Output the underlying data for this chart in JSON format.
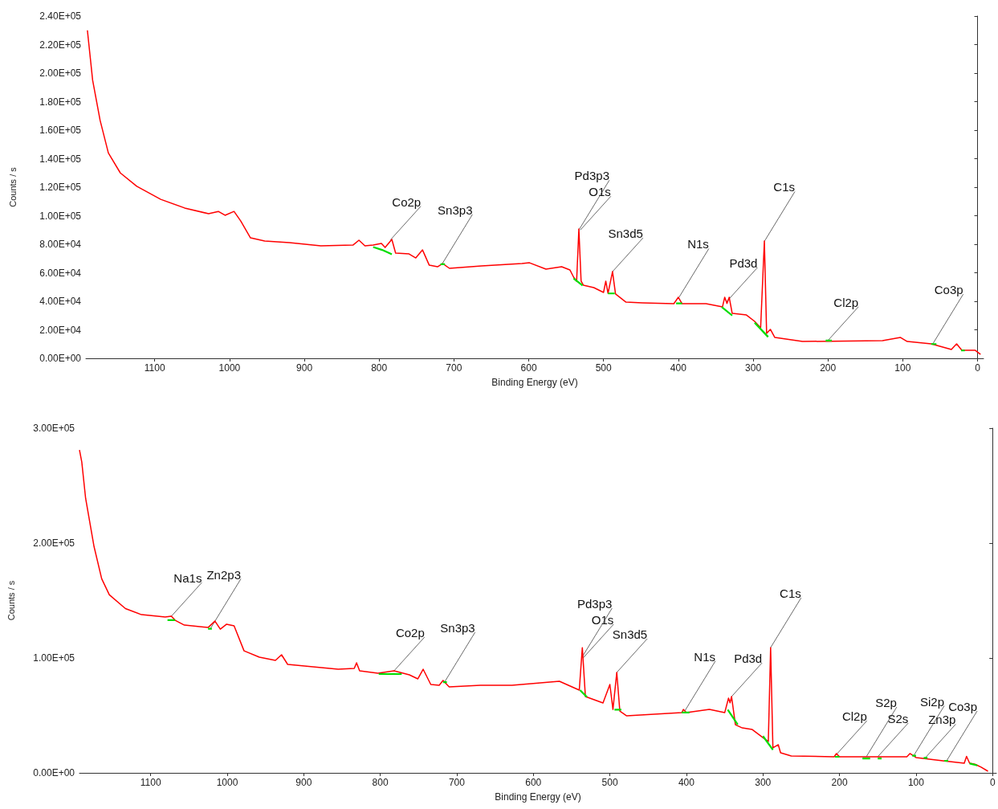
{
  "chart_data": [
    {
      "type": "line",
      "xlabel": "Binding Energy (eV)",
      "ylabel": "Counts / s",
      "marker": "none",
      "xlim": [
        1192,
        -8
      ],
      "xticks": [
        1100,
        1000,
        900,
        800,
        700,
        600,
        500,
        400,
        300,
        200,
        100,
        0
      ],
      "ylim": [
        0,
        240000
      ],
      "yticks": [
        {
          "value": 0,
          "label": "0.00E+00"
        },
        {
          "value": 20000,
          "label": "2.00E+04"
        },
        {
          "value": 40000,
          "label": "4.00E+04"
        },
        {
          "value": 60000,
          "label": "6.00E+04"
        },
        {
          "value": 80000,
          "label": "8.00E+04"
        },
        {
          "value": 100000,
          "label": "1.00E+05"
        },
        {
          "value": 120000,
          "label": "1.20E+05"
        },
        {
          "value": 140000,
          "label": "1.40E+05"
        },
        {
          "value": 160000,
          "label": "1.60E+05"
        },
        {
          "value": 180000,
          "label": "1.80E+05"
        },
        {
          "value": 200000,
          "label": "2.00E+05"
        },
        {
          "value": 220000,
          "label": "2.20E+05"
        },
        {
          "value": 240000,
          "label": "2.40E+05"
        }
      ],
      "series": [
        {
          "color": "#ff0000",
          "x": [
            1190,
            1183,
            1173,
            1162,
            1146,
            1124,
            1092,
            1060,
            1028,
            1015,
            1006,
            994,
            985,
            972,
            953,
            920,
            878,
            835,
            827,
            819,
            808,
            797,
            792,
            783,
            778,
            760,
            751,
            742,
            733,
            722,
            715,
            706,
            663,
            609,
            599,
            577,
            556,
            545,
            540,
            536,
            533,
            530,
            527,
            513,
            500,
            497,
            494,
            488,
            484,
            470,
            448,
            406,
            400,
            395,
            363,
            341,
            338,
            335,
            332,
            328,
            309,
            298,
            290,
            285,
            282,
            277,
            271,
            234,
            127,
            103,
            94,
            62,
            35,
            28,
            21,
            3,
            -4
          ],
          "values": [
            230000,
            195000,
            166800,
            144000,
            130000,
            120600,
            111500,
            105400,
            101400,
            103000,
            100300,
            103000,
            96300,
            84500,
            82300,
            81100,
            78900,
            79400,
            82800,
            78900,
            79400,
            80600,
            77700,
            83400,
            73800,
            73200,
            70400,
            76000,
            65300,
            64200,
            66400,
            63100,
            64800,
            66500,
            67000,
            62500,
            64200,
            62000,
            56900,
            54100,
            90700,
            54100,
            51300,
            49600,
            46200,
            54100,
            45600,
            60800,
            45100,
            39400,
            38900,
            38300,
            42800,
            38300,
            38300,
            36100,
            42800,
            38500,
            42800,
            31500,
            30400,
            25900,
            21400,
            82300,
            17500,
            20300,
            14600,
            11800,
            12400,
            14600,
            11800,
            10100,
            6200,
            10100,
            5600,
            5600,
            2800
          ]
        },
        {
          "color": "#00dd00",
          "x": [
            808,
            796,
            783,
            null,
            718,
            712,
            null,
            540,
            528,
            null,
            494,
            485,
            null,
            403,
            395,
            null,
            342,
            328,
            null,
            298,
            280,
            null,
            203,
            195,
            null,
            62,
            55,
            null,
            22,
            17
          ],
          "values": [
            78000,
            76000,
            73000,
            null,
            66000,
            66000,
            null,
            56000,
            51000,
            null,
            45500,
            45500,
            null,
            38500,
            38500,
            null,
            36000,
            30000,
            null,
            25000,
            15000,
            null,
            12500,
            12500,
            null,
            10000,
            10000,
            null,
            5500,
            5500
          ]
        }
      ],
      "annotations": [
        {
          "text": "Co2p",
          "x": 785,
          "y": 83000
        },
        {
          "text": "Sn3p3",
          "x": 716,
          "y": 66000
        },
        {
          "text": "O1s",
          "x": 531,
          "y": 90000
        },
        {
          "text": "Pd3p3",
          "x": 533,
          "y": 90000
        },
        {
          "text": "Sn3d5",
          "x": 488,
          "y": 60800
        },
        {
          "text": "N1s",
          "x": 400,
          "y": 42000
        },
        {
          "text": "Pd3d",
          "x": 335,
          "y": 40000
        },
        {
          "text": "C1s",
          "x": 285,
          "y": 82000
        },
        {
          "text": "Cl2p",
          "x": 200,
          "y": 12500
        },
        {
          "text": "Co3p",
          "x": 60,
          "y": 10000
        }
      ]
    },
    {
      "type": "line",
      "xlabel": "Binding Energy (eV)",
      "ylabel": "Counts / s",
      "marker": "none",
      "xlim": [
        1193,
        -5
      ],
      "xticks": [
        1100,
        1000,
        900,
        800,
        700,
        600,
        500,
        400,
        300,
        200,
        100,
        0
      ],
      "ylim": [
        0,
        300000
      ],
      "yticks": [
        {
          "value": 0,
          "label": "0.00E+00"
        },
        {
          "value": 100000,
          "label": "1.00E+05"
        },
        {
          "value": 200000,
          "label": "2.00E+05"
        },
        {
          "value": 300000,
          "label": "3.00E+05"
        }
      ],
      "series": [
        {
          "color": "#ff0000",
          "x": [
            1193,
            1190,
            1185,
            1174,
            1164,
            1154,
            1133,
            1112,
            1081,
            1073,
            1068,
            1056,
            1025,
            1016,
            1009,
            1001,
            991,
            978,
            958,
            937,
            929,
            921,
            855,
            834,
            831,
            827,
            803,
            782,
            762,
            751,
            744,
            734,
            723,
            718,
            710,
            669,
            628,
            566,
            540,
            536,
            532,
            509,
            500,
            496,
            491,
            487,
            478,
            406,
            404,
            400,
            370,
            350,
            345,
            343,
            341,
            336,
            327,
            314,
            299,
            293,
            290,
            287,
            280,
            277,
            263,
            207,
            204,
            200,
            112,
            108,
            100,
            65,
            37,
            34,
            30,
            27,
            23,
            15,
            6
          ],
          "values": [
            281000,
            270500,
            239000,
            197000,
            169000,
            155000,
            143000,
            137700,
            135600,
            136300,
            132800,
            128600,
            126500,
            132100,
            125100,
            129300,
            128000,
            106200,
            100700,
            97900,
            102800,
            94400,
            90200,
            90900,
            95800,
            88800,
            86700,
            88800,
            85300,
            81800,
            90200,
            76900,
            76200,
            80400,
            74800,
            76200,
            76200,
            79700,
            72000,
            109000,
            66400,
            60800,
            76900,
            55200,
            87400,
            53800,
            49600,
            52400,
            55200,
            52400,
            55200,
            52400,
            65000,
            61000,
            66400,
            41900,
            39100,
            37700,
            30100,
            27300,
            109000,
            21700,
            24500,
            17500,
            14700,
            14000,
            16800,
            14000,
            14000,
            16800,
            13300,
            10500,
            8400,
            14300,
            8400,
            8000,
            7500,
            5000,
            1400
          ]
        },
        {
          "color": "#00dd00",
          "x": [
            1078,
            1068,
            null,
            1025,
            1020,
            null,
            802,
            772,
            null,
            718,
            713,
            null,
            539,
            530,
            null,
            494,
            485,
            null,
            406,
            396,
            null,
            346,
            333,
            null,
            300,
            287,
            null,
            206,
            200,
            null,
            170,
            160,
            null,
            150,
            145,
            null,
            105,
            100,
            null,
            90,
            85,
            null,
            63,
            58,
            null,
            30,
            20
          ],
          "values": [
            133000,
            133000,
            null,
            125500,
            125500,
            null,
            86000,
            86000,
            null,
            79000,
            79000,
            null,
            72000,
            66000,
            null,
            55000,
            55000,
            null,
            52500,
            52500,
            null,
            55000,
            42000,
            null,
            32000,
            20000,
            null,
            14000,
            14000,
            null,
            12500,
            12500,
            null,
            12500,
            12500,
            null,
            15000,
            15000,
            null,
            13000,
            13000,
            null,
            10500,
            10500,
            null,
            8100,
            6500
          ]
        }
      ],
      "annotations": [
        {
          "text": "Na1s",
          "x": 1073,
          "y": 136300
        },
        {
          "text": "Zn2p3",
          "x": 1022,
          "y": 125500
        },
        {
          "text": "Co2p",
          "x": 782,
          "y": 88800
        },
        {
          "text": "Sn3p3",
          "x": 716,
          "y": 79000
        },
        {
          "text": "O1s",
          "x": 535,
          "y": 100000
        },
        {
          "text": "Pd3p3",
          "x": 537,
          "y": 100000
        },
        {
          "text": "Sn3d5",
          "x": 491,
          "y": 87400
        },
        {
          "text": "N1s",
          "x": 402,
          "y": 54000
        },
        {
          "text": "Pd3d",
          "x": 341,
          "y": 66400
        },
        {
          "text": "C1s",
          "x": 290,
          "y": 109000
        },
        {
          "text": "Cl2p",
          "x": 204,
          "y": 16000
        },
        {
          "text": "S2p",
          "x": 165,
          "y": 14000
        },
        {
          "text": "S2s",
          "x": 150,
          "y": 14000
        },
        {
          "text": "Si2p",
          "x": 103,
          "y": 15000
        },
        {
          "text": "Zn3p",
          "x": 88,
          "y": 13000
        },
        {
          "text": "Co3p",
          "x": 60,
          "y": 10500
        }
      ]
    }
  ]
}
